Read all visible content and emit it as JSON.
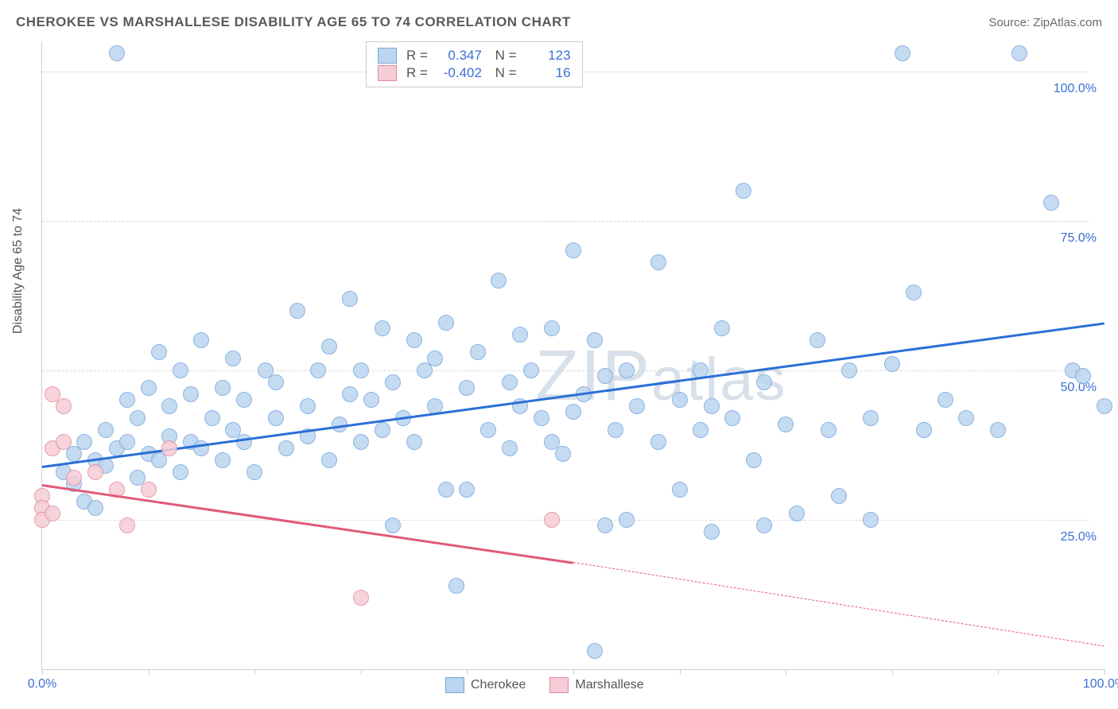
{
  "title": "CHEROKEE VS MARSHALLESE DISABILITY AGE 65 TO 74 CORRELATION CHART",
  "source": "Source: ZipAtlas.com",
  "ylabel": "Disability Age 65 to 74",
  "watermark": "ZIPatlas",
  "chart": {
    "type": "scatter",
    "xlim": [
      0,
      100
    ],
    "ylim": [
      0,
      105
    ],
    "xticks": [
      0,
      10,
      20,
      30,
      40,
      50,
      60,
      70,
      80,
      90,
      100
    ],
    "yticks": [
      25,
      50,
      75,
      100
    ],
    "xtick_labels": {
      "0": "0.0%",
      "100": "100.0%"
    },
    "ytick_labels": {
      "25": "25.0%",
      "50": "50.0%",
      "75": "75.0%",
      "100": "100.0%"
    },
    "background_color": "#ffffff",
    "grid_color": "#d8d8d8",
    "axis_color": "#cfcfcf",
    "series": [
      {
        "name": "Cherokee",
        "fill": "#bcd5f0",
        "stroke": "#7aa7d9",
        "line_color": "#2a6fd6",
        "R": "0.347",
        "N": "123",
        "trend": {
          "x1": 0,
          "y1": 34,
          "x2": 100,
          "y2": 58
        },
        "points": [
          [
            2,
            33
          ],
          [
            3,
            31
          ],
          [
            3,
            36
          ],
          [
            4,
            28
          ],
          [
            4,
            38
          ],
          [
            5,
            35
          ],
          [
            5,
            27
          ],
          [
            6,
            34
          ],
          [
            6,
            40
          ],
          [
            7,
            37
          ],
          [
            7,
            103
          ],
          [
            8,
            38
          ],
          [
            8,
            45
          ],
          [
            9,
            42
          ],
          [
            9,
            32
          ],
          [
            10,
            47
          ],
          [
            10,
            36
          ],
          [
            11,
            35
          ],
          [
            11,
            53
          ],
          [
            12,
            39
          ],
          [
            12,
            44
          ],
          [
            13,
            33
          ],
          [
            13,
            50
          ],
          [
            14,
            38
          ],
          [
            14,
            46
          ],
          [
            15,
            55
          ],
          [
            15,
            37
          ],
          [
            16,
            42
          ],
          [
            17,
            47
          ],
          [
            17,
            35
          ],
          [
            18,
            40
          ],
          [
            18,
            52
          ],
          [
            19,
            38
          ],
          [
            19,
            45
          ],
          [
            20,
            33
          ],
          [
            21,
            50
          ],
          [
            22,
            42
          ],
          [
            22,
            48
          ],
          [
            23,
            37
          ],
          [
            24,
            60
          ],
          [
            25,
            44
          ],
          [
            25,
            39
          ],
          [
            26,
            50
          ],
          [
            27,
            35
          ],
          [
            27,
            54
          ],
          [
            28,
            41
          ],
          [
            29,
            62
          ],
          [
            30,
            38
          ],
          [
            30,
            50
          ],
          [
            31,
            45
          ],
          [
            32,
            40
          ],
          [
            32,
            57
          ],
          [
            33,
            24
          ],
          [
            33,
            48
          ],
          [
            34,
            42
          ],
          [
            35,
            55
          ],
          [
            35,
            38
          ],
          [
            36,
            50
          ],
          [
            37,
            44
          ],
          [
            38,
            30
          ],
          [
            38,
            58
          ],
          [
            39,
            14
          ],
          [
            40,
            47
          ],
          [
            40,
            30
          ],
          [
            41,
            53
          ],
          [
            42,
            40
          ],
          [
            43,
            65
          ],
          [
            44,
            37
          ],
          [
            45,
            56
          ],
          [
            45,
            44
          ],
          [
            46,
            50
          ],
          [
            47,
            42
          ],
          [
            48,
            57
          ],
          [
            49,
            36
          ],
          [
            50,
            43
          ],
          [
            50,
            70
          ],
          [
            51,
            46
          ],
          [
            52,
            3
          ],
          [
            52,
            55
          ],
          [
            53,
            24
          ],
          [
            54,
            40
          ],
          [
            55,
            50
          ],
          [
            55,
            25
          ],
          [
            56,
            44
          ],
          [
            58,
            68
          ],
          [
            58,
            38
          ],
          [
            60,
            45
          ],
          [
            60,
            30
          ],
          [
            62,
            50
          ],
          [
            62,
            40
          ],
          [
            63,
            23
          ],
          [
            64,
            57
          ],
          [
            65,
            42
          ],
          [
            66,
            80
          ],
          [
            67,
            35
          ],
          [
            68,
            48
          ],
          [
            68,
            24
          ],
          [
            70,
            41
          ],
          [
            71,
            26
          ],
          [
            73,
            55
          ],
          [
            74,
            40
          ],
          [
            75,
            29
          ],
          [
            76,
            50
          ],
          [
            78,
            42
          ],
          [
            78,
            25
          ],
          [
            80,
            51
          ],
          [
            81,
            103
          ],
          [
            82,
            63
          ],
          [
            83,
            40
          ],
          [
            85,
            45
          ],
          [
            87,
            42
          ],
          [
            90,
            40
          ],
          [
            92,
            103
          ],
          [
            95,
            78
          ],
          [
            97,
            50
          ],
          [
            98,
            49
          ],
          [
            100,
            44
          ],
          [
            63,
            44
          ],
          [
            48,
            38
          ],
          [
            53,
            49
          ],
          [
            37,
            52
          ],
          [
            29,
            46
          ],
          [
            44,
            48
          ]
        ]
      },
      {
        "name": "Marshallese",
        "fill": "#f6cdd6",
        "stroke": "#e38aa0",
        "line_color": "#e05a7a",
        "R": "-0.402",
        "N": "16",
        "trend_solid": {
          "x1": 0,
          "y1": 31,
          "x2": 50,
          "y2": 18
        },
        "trend_dashed": {
          "x1": 50,
          "y1": 18,
          "x2": 100,
          "y2": 4
        },
        "points": [
          [
            0,
            29
          ],
          [
            0,
            27
          ],
          [
            0,
            25
          ],
          [
            1,
            26
          ],
          [
            1,
            37
          ],
          [
            1,
            46
          ],
          [
            2,
            38
          ],
          [
            2,
            44
          ],
          [
            3,
            32
          ],
          [
            5,
            33
          ],
          [
            7,
            30
          ],
          [
            8,
            24
          ],
          [
            10,
            30
          ],
          [
            12,
            37
          ],
          [
            30,
            12
          ],
          [
            48,
            25
          ]
        ]
      }
    ]
  },
  "legend_bottom": [
    {
      "label": "Cherokee",
      "fill": "#bcd5f0",
      "stroke": "#7aa7d9"
    },
    {
      "label": "Marshallese",
      "fill": "#f6cdd6",
      "stroke": "#e38aa0"
    }
  ]
}
